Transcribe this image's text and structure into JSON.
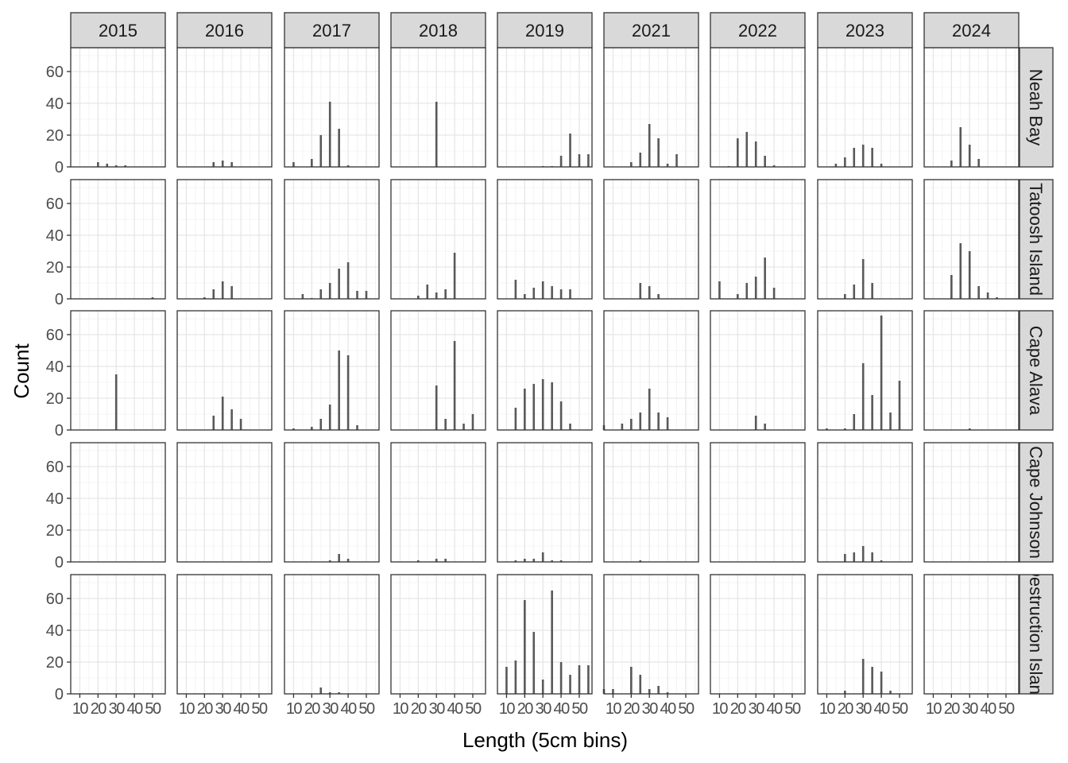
{
  "chart_data": {
    "type": "bar",
    "xlabel": "Length (5cm bins)",
    "ylabel": "Count",
    "xlim": [
      5,
      57
    ],
    "ylim": [
      0,
      75
    ],
    "x_ticks": [
      10,
      20,
      30,
      40,
      50
    ],
    "y_ticks": [
      0,
      20,
      40,
      60
    ],
    "grid": true,
    "years": [
      "2015",
      "2016",
      "2017",
      "2018",
      "2019",
      "2021",
      "2022",
      "2023",
      "2024"
    ],
    "sites": [
      "Neah Bay",
      "Tatoosh Island",
      "Cape Alava",
      "Cape Johnson",
      "Destruction Island"
    ],
    "panels": [
      {
        "site": "Neah Bay",
        "year": "2015",
        "bars": [
          [
            20,
            3
          ],
          [
            25,
            2
          ],
          [
            30,
            1
          ],
          [
            35,
            1
          ]
        ]
      },
      {
        "site": "Neah Bay",
        "year": "2016",
        "bars": [
          [
            25,
            3
          ],
          [
            30,
            4
          ],
          [
            35,
            3
          ]
        ]
      },
      {
        "site": "Neah Bay",
        "year": "2017",
        "bars": [
          [
            10,
            3
          ],
          [
            20,
            5
          ],
          [
            25,
            20
          ],
          [
            30,
            41
          ],
          [
            35,
            24
          ],
          [
            40,
            1
          ]
        ]
      },
      {
        "site": "Neah Bay",
        "year": "2018",
        "bars": [
          [
            30,
            41
          ]
        ]
      },
      {
        "site": "Neah Bay",
        "year": "2019",
        "bars": [
          [
            30,
            0.5
          ],
          [
            35,
            0.5
          ],
          [
            40,
            7
          ],
          [
            45,
            21
          ],
          [
            50,
            8
          ],
          [
            55,
            8
          ]
        ]
      },
      {
        "site": "Neah Bay",
        "year": "2021",
        "bars": [
          [
            20,
            3
          ],
          [
            25,
            9
          ],
          [
            30,
            27
          ],
          [
            35,
            18
          ],
          [
            40,
            2
          ],
          [
            45,
            8
          ]
        ]
      },
      {
        "site": "Neah Bay",
        "year": "2022",
        "bars": [
          [
            15,
            0.5
          ],
          [
            20,
            18
          ],
          [
            25,
            22
          ],
          [
            30,
            16
          ],
          [
            35,
            7
          ],
          [
            40,
            1
          ]
        ]
      },
      {
        "site": "Neah Bay",
        "year": "2023",
        "bars": [
          [
            15,
            2
          ],
          [
            20,
            6
          ],
          [
            25,
            12
          ],
          [
            30,
            14
          ],
          [
            35,
            12
          ],
          [
            40,
            2
          ]
        ]
      },
      {
        "site": "Neah Bay",
        "year": "2024",
        "bars": [
          [
            20,
            4
          ],
          [
            25,
            25
          ],
          [
            30,
            14
          ],
          [
            35,
            5
          ]
        ]
      },
      {
        "site": "Tatoosh Island",
        "year": "2015",
        "bars": [
          [
            50,
            1
          ]
        ]
      },
      {
        "site": "Tatoosh Island",
        "year": "2016",
        "bars": [
          [
            20,
            1
          ],
          [
            25,
            6
          ],
          [
            30,
            11
          ],
          [
            35,
            8
          ]
        ]
      },
      {
        "site": "Tatoosh Island",
        "year": "2017",
        "bars": [
          [
            15,
            3
          ],
          [
            20,
            0.5
          ],
          [
            25,
            6
          ],
          [
            30,
            10
          ],
          [
            35,
            19
          ],
          [
            40,
            23
          ],
          [
            45,
            5
          ],
          [
            50,
            5
          ]
        ]
      },
      {
        "site": "Tatoosh Island",
        "year": "2018",
        "bars": [
          [
            20,
            2
          ],
          [
            25,
            9
          ],
          [
            30,
            4
          ],
          [
            35,
            6
          ],
          [
            40,
            29
          ]
        ]
      },
      {
        "site": "Tatoosh Island",
        "year": "2019",
        "bars": [
          [
            15,
            12
          ],
          [
            20,
            3
          ],
          [
            25,
            7
          ],
          [
            30,
            11
          ],
          [
            35,
            8
          ],
          [
            40,
            6
          ],
          [
            45,
            6
          ]
        ]
      },
      {
        "site": "Tatoosh Island",
        "year": "2021",
        "bars": [
          [
            25,
            10
          ],
          [
            30,
            8
          ],
          [
            35,
            3
          ]
        ]
      },
      {
        "site": "Tatoosh Island",
        "year": "2022",
        "bars": [
          [
            10,
            11
          ],
          [
            20,
            3
          ],
          [
            25,
            10
          ],
          [
            30,
            14
          ],
          [
            35,
            26
          ],
          [
            40,
            7
          ]
        ]
      },
      {
        "site": "Tatoosh Island",
        "year": "2023",
        "bars": [
          [
            20,
            3
          ],
          [
            25,
            9
          ],
          [
            30,
            25
          ],
          [
            35,
            10
          ]
        ]
      },
      {
        "site": "Tatoosh Island",
        "year": "2024",
        "bars": [
          [
            20,
            15
          ],
          [
            25,
            35
          ],
          [
            30,
            30
          ],
          [
            35,
            8
          ],
          [
            40,
            4
          ],
          [
            45,
            1
          ]
        ]
      },
      {
        "site": "Cape Alava",
        "year": "2015",
        "bars": [
          [
            30,
            35
          ]
        ]
      },
      {
        "site": "Cape Alava",
        "year": "2016",
        "bars": [
          [
            25,
            9
          ],
          [
            30,
            21
          ],
          [
            35,
            13
          ],
          [
            40,
            7
          ]
        ]
      },
      {
        "site": "Cape Alava",
        "year": "2017",
        "bars": [
          [
            10,
            1
          ],
          [
            20,
            2
          ],
          [
            25,
            7
          ],
          [
            30,
            16
          ],
          [
            35,
            50
          ],
          [
            40,
            47
          ],
          [
            45,
            3
          ]
        ]
      },
      {
        "site": "Cape Alava",
        "year": "2018",
        "bars": [
          [
            30,
            28
          ],
          [
            35,
            7
          ],
          [
            40,
            56
          ],
          [
            45,
            4
          ],
          [
            50,
            10
          ]
        ]
      },
      {
        "site": "Cape Alava",
        "year": "2019",
        "bars": [
          [
            15,
            14
          ],
          [
            20,
            26
          ],
          [
            25,
            29
          ],
          [
            30,
            32
          ],
          [
            35,
            30
          ],
          [
            40,
            18
          ],
          [
            45,
            4
          ]
        ]
      },
      {
        "site": "Cape Alava",
        "year": "2021",
        "bars": [
          [
            5,
            3
          ],
          [
            15,
            4
          ],
          [
            20,
            7
          ],
          [
            25,
            11
          ],
          [
            30,
            26
          ],
          [
            35,
            11
          ],
          [
            40,
            8
          ]
        ]
      },
      {
        "site": "Cape Alava",
        "year": "2022",
        "bars": [
          [
            30,
            9
          ],
          [
            35,
            4
          ]
        ]
      },
      {
        "site": "Cape Alava",
        "year": "2023",
        "bars": [
          [
            10,
            1
          ],
          [
            20,
            1
          ],
          [
            25,
            10
          ],
          [
            30,
            42
          ],
          [
            35,
            22
          ],
          [
            40,
            72
          ],
          [
            45,
            11
          ],
          [
            50,
            31
          ]
        ]
      },
      {
        "site": "Cape Alava",
        "year": "2024",
        "bars": [
          [
            30,
            1
          ]
        ]
      },
      {
        "site": "Cape Johnson",
        "year": "2015",
        "bars": []
      },
      {
        "site": "Cape Johnson",
        "year": "2016",
        "bars": []
      },
      {
        "site": "Cape Johnson",
        "year": "2017",
        "bars": [
          [
            30,
            1
          ],
          [
            35,
            5
          ],
          [
            40,
            2
          ]
        ]
      },
      {
        "site": "Cape Johnson",
        "year": "2018",
        "bars": [
          [
            20,
            1
          ],
          [
            30,
            2
          ],
          [
            35,
            2
          ]
        ]
      },
      {
        "site": "Cape Johnson",
        "year": "2019",
        "bars": [
          [
            15,
            1
          ],
          [
            20,
            2
          ],
          [
            25,
            2
          ],
          [
            30,
            6
          ],
          [
            35,
            1
          ],
          [
            40,
            1
          ]
        ]
      },
      {
        "site": "Cape Johnson",
        "year": "2021",
        "bars": [
          [
            25,
            1
          ]
        ]
      },
      {
        "site": "Cape Johnson",
        "year": "2022",
        "bars": []
      },
      {
        "site": "Cape Johnson",
        "year": "2023",
        "bars": [
          [
            20,
            5
          ],
          [
            25,
            6
          ],
          [
            30,
            10
          ],
          [
            35,
            6
          ],
          [
            40,
            1
          ]
        ]
      },
      {
        "site": "Cape Johnson",
        "year": "2024",
        "bars": []
      },
      {
        "site": "Destruction Island",
        "year": "2015",
        "bars": []
      },
      {
        "site": "Destruction Island",
        "year": "2016",
        "bars": []
      },
      {
        "site": "Destruction Island",
        "year": "2017",
        "bars": [
          [
            25,
            4
          ],
          [
            30,
            1
          ],
          [
            35,
            1
          ]
        ]
      },
      {
        "site": "Destruction Island",
        "year": "2018",
        "bars": []
      },
      {
        "site": "Destruction Island",
        "year": "2019",
        "bars": [
          [
            10,
            17
          ],
          [
            15,
            21
          ],
          [
            20,
            59
          ],
          [
            25,
            39
          ],
          [
            30,
            9
          ],
          [
            35,
            65
          ],
          [
            40,
            20
          ],
          [
            45,
            12
          ],
          [
            50,
            18
          ],
          [
            55,
            18
          ]
        ]
      },
      {
        "site": "Destruction Island",
        "year": "2021",
        "bars": [
          [
            5,
            3
          ],
          [
            10,
            3
          ],
          [
            20,
            17
          ],
          [
            25,
            12
          ],
          [
            30,
            3
          ],
          [
            35,
            5
          ],
          [
            40,
            1
          ]
        ]
      },
      {
        "site": "Destruction Island",
        "year": "2022",
        "bars": []
      },
      {
        "site": "Destruction Island",
        "year": "2023",
        "bars": [
          [
            20,
            2
          ],
          [
            30,
            22
          ],
          [
            35,
            17
          ],
          [
            40,
            14
          ],
          [
            45,
            2
          ]
        ]
      },
      {
        "site": "Destruction Island",
        "year": "2024",
        "bars": []
      }
    ]
  }
}
